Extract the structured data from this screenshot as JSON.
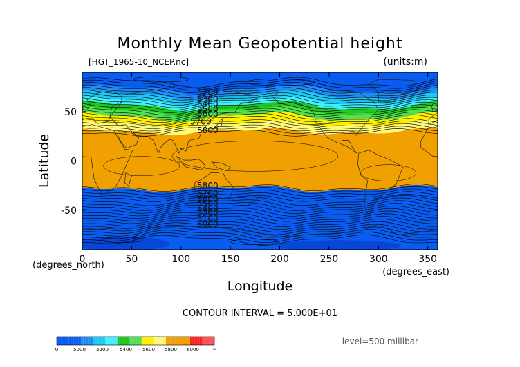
{
  "chart_data": {
    "type": "contour",
    "title": "Monthly Mean Geopotential height",
    "file_label": "[HGT_1965-10_NCEP.nc]",
    "units_label": "(units:m)",
    "xlabel": "Longitude",
    "ylabel": "Latitude",
    "x_units": "(degrees_east)",
    "y_units": "(degrees_north)",
    "xlim": [
      0,
      360
    ],
    "ylim": [
      -90,
      90
    ],
    "x_ticks": [
      0,
      50,
      100,
      150,
      200,
      250,
      300,
      350
    ],
    "y_ticks": [
      -50,
      0,
      50
    ],
    "contour_interval_text": "CONTOUR INTERVAL = 5.000E+01",
    "level_text": "level=500 millibar",
    "contour_labels": [
      {
        "value": "5200",
        "lon": 127,
        "lat": 70
      },
      {
        "value": "5300",
        "lon": 127,
        "lat": 63
      },
      {
        "value": "5400",
        "lon": 127,
        "lat": 58
      },
      {
        "value": "5500",
        "lon": 127,
        "lat": 53
      },
      {
        "value": "5600",
        "lon": 127,
        "lat": 48
      },
      {
        "value": "5700",
        "lon": 120,
        "lat": 40
      },
      {
        "value": "5800",
        "lon": 127,
        "lat": 31
      },
      {
        "value": "5800",
        "lon": 127,
        "lat": -25
      },
      {
        "value": "5700",
        "lon": 127,
        "lat": -33
      },
      {
        "value": "5600",
        "lon": 127,
        "lat": -39
      },
      {
        "value": "5500",
        "lon": 127,
        "lat": -43
      },
      {
        "value": "5400",
        "lon": 127,
        "lat": -48
      },
      {
        "value": "5300",
        "lon": 127,
        "lat": -52
      },
      {
        "value": "5100",
        "lon": 127,
        "lat": -58
      },
      {
        "value": "5000",
        "lon": 127,
        "lat": -64
      }
    ],
    "colorbar": {
      "labels": [
        "0",
        "5000",
        "5200",
        "5400",
        "5600",
        "5800",
        "6000",
        "∞"
      ],
      "colors": [
        "#0a5cf0",
        "#0a5cf0",
        "#1e8cf5",
        "#1ec8f5",
        "#3cf0ff",
        "#20c820",
        "#50e050",
        "#fff000",
        "#fff878",
        "#f0a000",
        "#f0a000",
        "#ff2020",
        "#ff5050"
      ]
    },
    "field": {
      "band_colors": [
        "#0a5cf0",
        "#1e8cf5",
        "#1ec8f5",
        "#3cf0ff",
        "#20c820",
        "#50e050",
        "#fff000",
        "#fff878",
        "#f0a000"
      ],
      "band_edges_north": [
        {
          "value": 5150,
          "lat": 73
        },
        {
          "value": 5250,
          "lat": 67
        },
        {
          "value": 5350,
          "lat": 61
        },
        {
          "value": 5450,
          "lat": 56
        },
        {
          "value": 5550,
          "lat": 51
        },
        {
          "value": 5650,
          "lat": 45
        },
        {
          "value": 5750,
          "lat": 38
        },
        {
          "value": 5825,
          "lat": 30
        }
      ],
      "band_edges_south": [
        {
          "value": 5825,
          "lat": -28
        },
        {
          "value": 5750,
          "lat": -35
        },
        {
          "value": 5650,
          "lat": -41
        },
        {
          "value": 5550,
          "lat": -46
        },
        {
          "value": 5450,
          "lat": -50
        },
        {
          "value": 5350,
          "lat": -55
        },
        {
          "value": 5250,
          "lat": -60
        },
        {
          "value": 5150,
          "lat": -67
        }
      ]
    }
  }
}
